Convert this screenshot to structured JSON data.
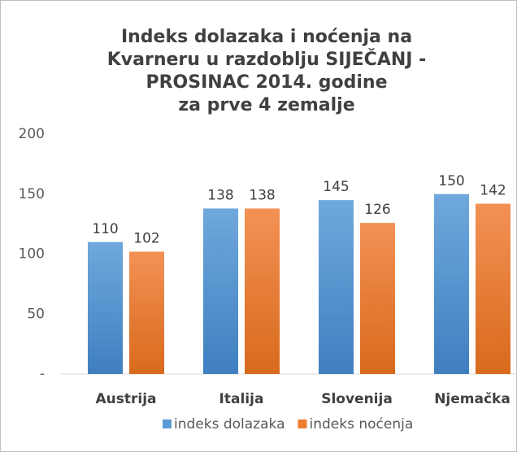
{
  "chart_data": {
    "type": "bar",
    "title": [
      "Indeks dolazaka i noćenja na",
      "Kvarneru u razdoblju SIJEČANJ -",
      "PROSINAC 2014. godine",
      "za prve 4 zemalje"
    ],
    "categories": [
      "Austrija",
      "Italija",
      "Slovenija",
      "Njemačka"
    ],
    "series": [
      {
        "name": "indeks dolazaka",
        "color": "#5b9bd5",
        "values": [
          110,
          138,
          145,
          150
        ]
      },
      {
        "name": "indeks noćenja",
        "color": "#ed7d31",
        "values": [
          102,
          138,
          126,
          142
        ]
      }
    ],
    "ylim": [
      0,
      200
    ],
    "yticks": [
      {
        "value": 0,
        "label": "-"
      },
      50,
      100,
      150,
      200
    ],
    "grid": false,
    "legend": "bottom"
  }
}
